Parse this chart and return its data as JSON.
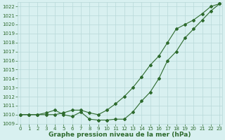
{
  "x": [
    0,
    1,
    2,
    3,
    4,
    5,
    6,
    7,
    8,
    9,
    10,
    11,
    12,
    13,
    14,
    15,
    16,
    17,
    18,
    19,
    20,
    21,
    22,
    23
  ],
  "series1": [
    1010.0,
    1010.0,
    1010.0,
    1010.0,
    1010.0,
    1010.2,
    1010.5,
    1010.5,
    1010.2,
    1010.0,
    1010.5,
    1011.2,
    1012.0,
    1013.0,
    1014.2,
    1015.5,
    1016.5,
    1018.0,
    1019.5,
    1020.0,
    1020.5,
    1021.2,
    1022.0,
    1022.3
  ],
  "series2": [
    1010.0,
    1010.0,
    1010.0,
    1010.2,
    1010.5,
    1010.0,
    1009.8,
    1010.3,
    1009.5,
    1009.4,
    1009.4,
    1009.5,
    1009.5,
    1010.3,
    1011.5,
    1012.5,
    1014.0,
    1016.0,
    1017.0,
    1018.5,
    1019.5,
    1020.5,
    1021.5,
    1022.3
  ],
  "ylim": [
    1009.0,
    1022.5
  ],
  "xlim": [
    -0.3,
    23.3
  ],
  "yticks": [
    1009,
    1010,
    1011,
    1012,
    1013,
    1014,
    1015,
    1016,
    1017,
    1018,
    1019,
    1020,
    1021,
    1022
  ],
  "xticks": [
    0,
    1,
    2,
    3,
    4,
    5,
    6,
    7,
    8,
    9,
    10,
    11,
    12,
    13,
    14,
    15,
    16,
    17,
    18,
    19,
    20,
    21,
    22,
    23
  ],
  "line_color": "#2d6a2d",
  "bg_color": "#d8f0f0",
  "grid_color": "#b8d8d8",
  "xlabel": "Graphe pression niveau de la mer (hPa)",
  "marker": "D",
  "marker_size": 2.0,
  "linewidth": 0.8,
  "tick_fontsize": 5.0,
  "xlabel_fontsize": 6.5
}
